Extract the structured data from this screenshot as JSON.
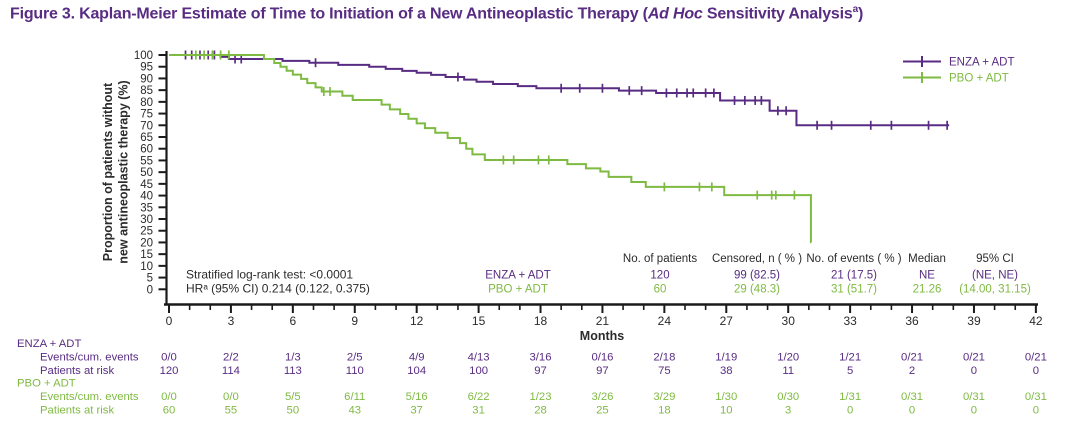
{
  "title": {
    "text_before_italic": "Figure 3. Kaplan-Meier Estimate of Time to Initiation of a New Antineoplastic Therapy (",
    "italic_text": "Ad Hoc",
    "text_after_italic": " Sensitivity Analysis",
    "superscript": "a",
    "closing": ")"
  },
  "colors": {
    "enza": "#582c83",
    "pbo": "#7fba42",
    "axis": "#1a1a1a",
    "text": "#2b2b2b"
  },
  "chart_data": {
    "type": "line",
    "subtype": "kaplan-meier-step",
    "title": "",
    "xlabel": "Months",
    "ylabel": "Proportion of patients without\nnew antineoplastic therapy (%)",
    "xlim": [
      0,
      42
    ],
    "ylim": [
      0,
      100
    ],
    "x_major_tick": 3,
    "x_minor_tick": 1,
    "y_tick": 5,
    "grid": false,
    "legend_position": "top-right",
    "legend": [
      "ENZA + ADT",
      "PBO + ADT"
    ],
    "series": [
      {
        "name": "ENZA + ADT",
        "color": "#582c83",
        "start": [
          0,
          100
        ],
        "end_month": 37.8,
        "steps": [
          [
            2.5,
            99.2
          ],
          [
            2.9,
            98.3
          ],
          [
            5.5,
            97.5
          ],
          [
            6.8,
            96.7
          ],
          [
            8.2,
            95.8
          ],
          [
            9.7,
            95.0
          ],
          [
            10.5,
            94.1
          ],
          [
            11.3,
            93.2
          ],
          [
            12.0,
            92.4
          ],
          [
            12.7,
            91.5
          ],
          [
            13.4,
            90.6
          ],
          [
            14.3,
            89.5
          ],
          [
            14.9,
            88.6
          ],
          [
            15.7,
            87.6
          ],
          [
            16.9,
            86.7
          ],
          [
            17.8,
            85.8
          ],
          [
            21.8,
            84.8
          ],
          [
            23.6,
            83.8
          ],
          [
            26.7,
            80.6
          ],
          [
            29.1,
            76.2
          ],
          [
            30.4,
            70.0
          ]
        ],
        "censors": [
          [
            0.8,
            100
          ],
          [
            1.1,
            100
          ],
          [
            1.5,
            100
          ],
          [
            1.9,
            100
          ],
          [
            2.2,
            100
          ],
          [
            3.2,
            98.3
          ],
          [
            3.5,
            98.3
          ],
          [
            7.1,
            96.7
          ],
          [
            14.0,
            90.6
          ],
          [
            19.0,
            85.8
          ],
          [
            19.9,
            85.8
          ],
          [
            21.0,
            85.8
          ],
          [
            22.3,
            84.8
          ],
          [
            22.9,
            84.8
          ],
          [
            24.1,
            83.8
          ],
          [
            24.6,
            83.8
          ],
          [
            25.1,
            83.8
          ],
          [
            25.4,
            83.8
          ],
          [
            26.0,
            83.8
          ],
          [
            26.4,
            83.8
          ],
          [
            27.4,
            80.6
          ],
          [
            27.9,
            80.6
          ],
          [
            28.4,
            80.6
          ],
          [
            28.7,
            80.6
          ],
          [
            29.5,
            76.2
          ],
          [
            29.9,
            76.2
          ],
          [
            31.4,
            70
          ],
          [
            32.1,
            70
          ],
          [
            34.0,
            70
          ],
          [
            35.0,
            70
          ],
          [
            36.8,
            70
          ],
          [
            37.7,
            70
          ]
        ]
      },
      {
        "name": "PBO + ADT",
        "color": "#7fba42",
        "start": [
          0,
          100
        ],
        "end_month": 31.12,
        "steps": [
          [
            4.6,
            98.3
          ],
          [
            5.1,
            96.6
          ],
          [
            5.4,
            95.0
          ],
          [
            5.7,
            93.3
          ],
          [
            6.0,
            91.6
          ],
          [
            6.4,
            89.8
          ],
          [
            6.7,
            88.0
          ],
          [
            7.1,
            86.2
          ],
          [
            7.4,
            84.4
          ],
          [
            8.4,
            82.6
          ],
          [
            8.9,
            80.8
          ],
          [
            10.3,
            78.8
          ],
          [
            10.7,
            76.8
          ],
          [
            11.2,
            74.8
          ],
          [
            11.6,
            72.8
          ],
          [
            12.0,
            70.8
          ],
          [
            12.4,
            68.8
          ],
          [
            12.9,
            66.8
          ],
          [
            13.5,
            64.6
          ],
          [
            14.1,
            62.4
          ],
          [
            14.4,
            60.0
          ],
          [
            14.7,
            57.6
          ],
          [
            15.3,
            55.2
          ],
          [
            19.3,
            53.4
          ],
          [
            20.2,
            51.6
          ],
          [
            20.9,
            50.3
          ],
          [
            21.3,
            48.0
          ],
          [
            22.4,
            45.8
          ],
          [
            23.1,
            43.7
          ],
          [
            26.9,
            40.2
          ],
          [
            31.1,
            20.1
          ]
        ],
        "censors": [
          [
            1.3,
            100
          ],
          [
            1.7,
            100
          ],
          [
            2.1,
            100
          ],
          [
            2.5,
            100
          ],
          [
            2.9,
            100
          ],
          [
            7.5,
            84.4
          ],
          [
            7.8,
            84.4
          ],
          [
            16.2,
            55.2
          ],
          [
            16.7,
            55.2
          ],
          [
            17.9,
            55.2
          ],
          [
            18.4,
            55.2
          ],
          [
            24.0,
            43.7
          ],
          [
            25.7,
            43.7
          ],
          [
            26.3,
            43.7
          ],
          [
            28.5,
            40.2
          ],
          [
            29.2,
            40.2
          ],
          [
            29.4,
            40.2
          ],
          [
            30.3,
            40.2
          ]
        ]
      }
    ],
    "stats": [
      "Stratified log-rank test: <0.0001",
      "HRᵃ (95% CI) 0.214 (0.122, 0.375)"
    ],
    "summary_table": {
      "headers": [
        "No. of patients",
        "Censored, n ( % )",
        "No. of events ( % )",
        "Median",
        "95% CI"
      ],
      "rows": [
        {
          "group": "ENZA + ADT",
          "color": "#582c83",
          "values": [
            "120",
            "99 (82.5)",
            "21 (17.5)",
            "NE",
            "(NE, NE)"
          ]
        },
        {
          "group": "PBO + ADT",
          "color": "#7fba42",
          "values": [
            "60",
            "29 (48.3)",
            "31 (51.7)",
            "21.26",
            "(14.00, 31.15)"
          ]
        }
      ]
    },
    "risk_table": {
      "months": [
        0,
        3,
        6,
        9,
        12,
        15,
        18,
        21,
        24,
        27,
        30,
        33,
        36,
        39,
        42
      ],
      "groups": [
        {
          "name": "ENZA + ADT",
          "color": "#582c83",
          "rows": [
            {
              "label": "Events/cum. events",
              "values": [
                "0/0",
                "2/2",
                "1/3",
                "2/5",
                "4/9",
                "4/13",
                "3/16",
                "0/16",
                "2/18",
                "1/19",
                "1/20",
                "1/21",
                "0/21",
                "0/21",
                "0/21"
              ]
            },
            {
              "label": "Patients at risk",
              "values": [
                "120",
                "114",
                "113",
                "110",
                "104",
                "100",
                "97",
                "97",
                "75",
                "38",
                "11",
                "5",
                "2",
                "0",
                "0"
              ]
            }
          ]
        },
        {
          "name": "PBO + ADT",
          "color": "#7fba42",
          "rows": [
            {
              "label": "Events/cum. events",
              "values": [
                "0/0",
                "0/0",
                "5/5",
                "6/11",
                "5/16",
                "6/22",
                "1/23",
                "3/26",
                "3/29",
                "1/30",
                "0/30",
                "1/31",
                "0/31",
                "0/31",
                "0/31"
              ]
            },
            {
              "label": "Patients at risk",
              "values": [
                "60",
                "55",
                "50",
                "43",
                "37",
                "31",
                "28",
                "25",
                "18",
                "10",
                "3",
                "0",
                "0",
                "0",
                "0"
              ]
            }
          ]
        }
      ]
    }
  }
}
